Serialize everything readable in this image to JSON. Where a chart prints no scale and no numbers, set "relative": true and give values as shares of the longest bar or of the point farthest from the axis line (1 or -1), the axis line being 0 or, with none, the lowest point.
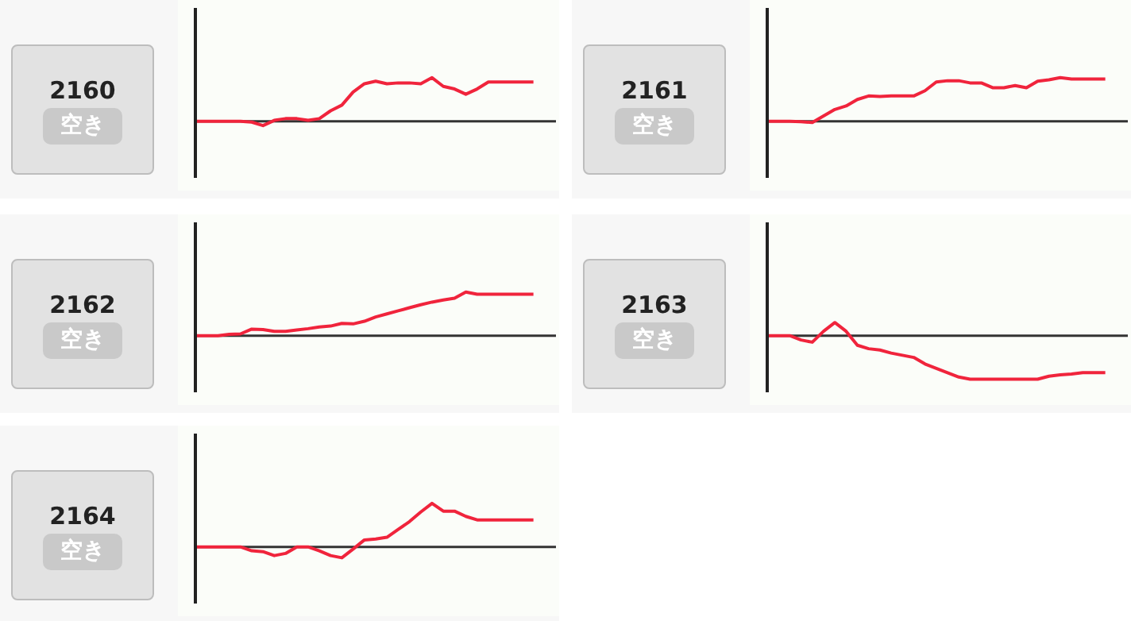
{
  "chart_data": [
    {
      "type": "other",
      "title": "2160",
      "annotations": [
        "空き"
      ]
    },
    {
      "type": "line",
      "relative": true,
      "categories": [
        null,
        null,
        null,
        null,
        null,
        null,
        null,
        null,
        null,
        null,
        null,
        null,
        null,
        null,
        null,
        null,
        null,
        null,
        null,
        null,
        null,
        null,
        null,
        null,
        null,
        null,
        null,
        null,
        null,
        null,
        null,
        null,
        null
      ],
      "series": [
        {
          "color": "#f0243c",
          "values": [
            0,
            0,
            0,
            0,
            0,
            -0.02,
            -0.1,
            0.02,
            0.06,
            0.06,
            0.02,
            0.06,
            0.24,
            0.37,
            0.67,
            0.86,
            0.92,
            0.86,
            0.88,
            0.88,
            0.86,
            1,
            0.8,
            0.74,
            0.62,
            0.74,
            0.9,
            0.9,
            0.9,
            0.9,
            0.9,
            null,
            null
          ]
        }
      ]
    },
    {
      "type": "other",
      "title": "2161",
      "annotations": [
        "空き"
      ]
    },
    {
      "type": "line",
      "relative": true,
      "categories": [
        null,
        null,
        null,
        null,
        null,
        null,
        null,
        null,
        null,
        null,
        null,
        null,
        null,
        null,
        null,
        null,
        null,
        null,
        null,
        null,
        null,
        null,
        null,
        null,
        null,
        null,
        null,
        null,
        null,
        null,
        null,
        null,
        null
      ],
      "series": [
        {
          "color": "#f0243c",
          "values": [
            0,
            0,
            0,
            -0.01,
            -0.03,
            0.12,
            0.27,
            0.35,
            0.5,
            0.58,
            0.57,
            0.58,
            0.58,
            0.58,
            0.7,
            0.9,
            0.93,
            0.93,
            0.88,
            0.88,
            0.77,
            0.77,
            0.82,
            0.77,
            0.92,
            0.95,
            1,
            0.97,
            0.97,
            0.97,
            0.97,
            null,
            null
          ]
        }
      ]
    },
    {
      "type": "other",
      "title": "2162",
      "annotations": [
        "空き"
      ]
    },
    {
      "type": "line",
      "relative": true,
      "categories": [
        null,
        null,
        null,
        null,
        null,
        null,
        null,
        null,
        null,
        null,
        null,
        null,
        null,
        null,
        null,
        null,
        null,
        null,
        null,
        null,
        null,
        null,
        null,
        null,
        null,
        null,
        null,
        null,
        null,
        null,
        null,
        null,
        null
      ],
      "series": [
        {
          "color": "#f0243c",
          "values": [
            0,
            0,
            0,
            0.03,
            0.04,
            0.15,
            0.14,
            0.1,
            0.1,
            0.13,
            0.16,
            0.2,
            0.22,
            0.28,
            0.27,
            0.33,
            0.43,
            0.5,
            0.57,
            0.64,
            0.71,
            0.77,
            0.82,
            0.86,
            1,
            0.95,
            0.95,
            0.95,
            0.95,
            0.95,
            0.95,
            null,
            null
          ]
        }
      ]
    },
    {
      "type": "other",
      "title": "2163",
      "annotations": [
        "空き"
      ]
    },
    {
      "type": "line",
      "relative": true,
      "categories": [
        null,
        null,
        null,
        null,
        null,
        null,
        null,
        null,
        null,
        null,
        null,
        null,
        null,
        null,
        null,
        null,
        null,
        null,
        null,
        null,
        null,
        null,
        null,
        null,
        null,
        null,
        null,
        null,
        null,
        null,
        null,
        null,
        null
      ],
      "series": [
        {
          "color": "#f0243c",
          "values": [
            0,
            0,
            0,
            -0.1,
            -0.15,
            0.1,
            0.3,
            0.1,
            -0.22,
            -0.3,
            -0.33,
            -0.4,
            -0.45,
            -0.5,
            -0.65,
            -0.75,
            -0.85,
            -0.95,
            -1,
            -1,
            -1,
            -1,
            -1,
            -1,
            -1,
            -0.93,
            -0.9,
            -0.88,
            -0.85,
            -0.85,
            -0.85,
            null,
            null
          ]
        }
      ]
    },
    {
      "type": "other",
      "title": "2164",
      "annotations": [
        "空き"
      ]
    },
    {
      "type": "line",
      "relative": true,
      "categories": [
        null,
        null,
        null,
        null,
        null,
        null,
        null,
        null,
        null,
        null,
        null,
        null,
        null,
        null,
        null,
        null,
        null,
        null,
        null,
        null,
        null,
        null,
        null,
        null,
        null,
        null,
        null,
        null,
        null,
        null,
        null,
        null,
        null
      ],
      "series": [
        {
          "color": "#f0243c",
          "values": [
            0,
            0,
            0,
            0,
            0,
            -0.09,
            -0.11,
            -0.2,
            -0.15,
            0,
            0,
            -0.09,
            -0.2,
            -0.25,
            -0.05,
            0.16,
            0.18,
            0.22,
            0.4,
            0.58,
            0.8,
            1,
            0.82,
            0.82,
            0.7,
            0.62,
            0.62,
            0.62,
            0.62,
            0.62,
            0.62,
            null,
            null
          ]
        }
      ]
    }
  ]
}
